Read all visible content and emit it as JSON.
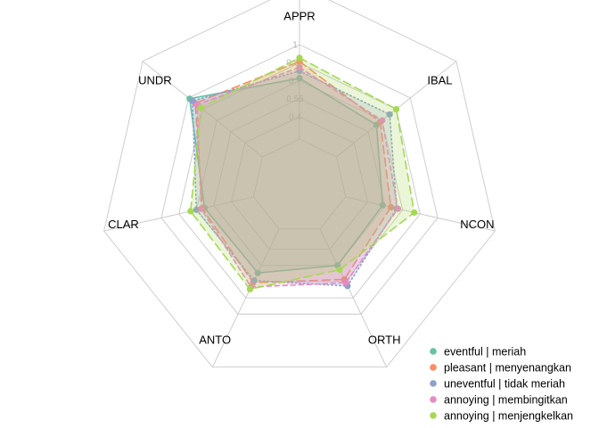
{
  "chart_data": {
    "type": "radar",
    "axes": [
      "APPR",
      "IBAL",
      "NCON",
      "ORTH",
      "ANTO",
      "CLAR",
      "UNDR"
    ],
    "rlim": [
      0.25,
      1
    ],
    "ticks": [
      {
        "value": 0.4,
        "label": "0.4"
      },
      {
        "value": 0.55,
        "label": "0.55"
      },
      {
        "value": 0.7,
        "label": "0.7"
      },
      {
        "value": 0.85,
        "label": "0.85"
      },
      {
        "value": 1,
        "label": "1"
      }
    ],
    "grid": true,
    "legend_position": "bottom-right",
    "series": [
      {
        "name": "eventful | meriah",
        "color": "#66c2a5",
        "dash": "solid",
        "values": [
          0.72,
          0.64,
          0.53,
          0.55,
          0.62,
          0.63,
          0.99
        ]
      },
      {
        "name": "pleasant | menyenangkan",
        "color": "#fc8d62",
        "dash": "longdash",
        "values": [
          0.86,
          0.68,
          0.6,
          0.68,
          0.71,
          0.65,
          0.93
        ]
      },
      {
        "name": "uneventful | tidak meriah",
        "color": "#8da0cb",
        "dash": "dotted",
        "values": [
          0.78,
          0.78,
          0.65,
          0.74,
          0.69,
          0.7,
          0.96
        ]
      },
      {
        "name": "annoying | membingitkan",
        "color": "#e78ac3",
        "dash": "dashed",
        "values": [
          0.81,
          0.7,
          0.66,
          0.71,
          0.75,
          0.66,
          0.91
        ]
      },
      {
        "name": "annoying | menjengkelkan",
        "color": "#a6d854",
        "dash": "longdash",
        "values": [
          0.89,
          0.85,
          0.8,
          0.59,
          0.77,
          0.75,
          0.87
        ]
      }
    ]
  }
}
